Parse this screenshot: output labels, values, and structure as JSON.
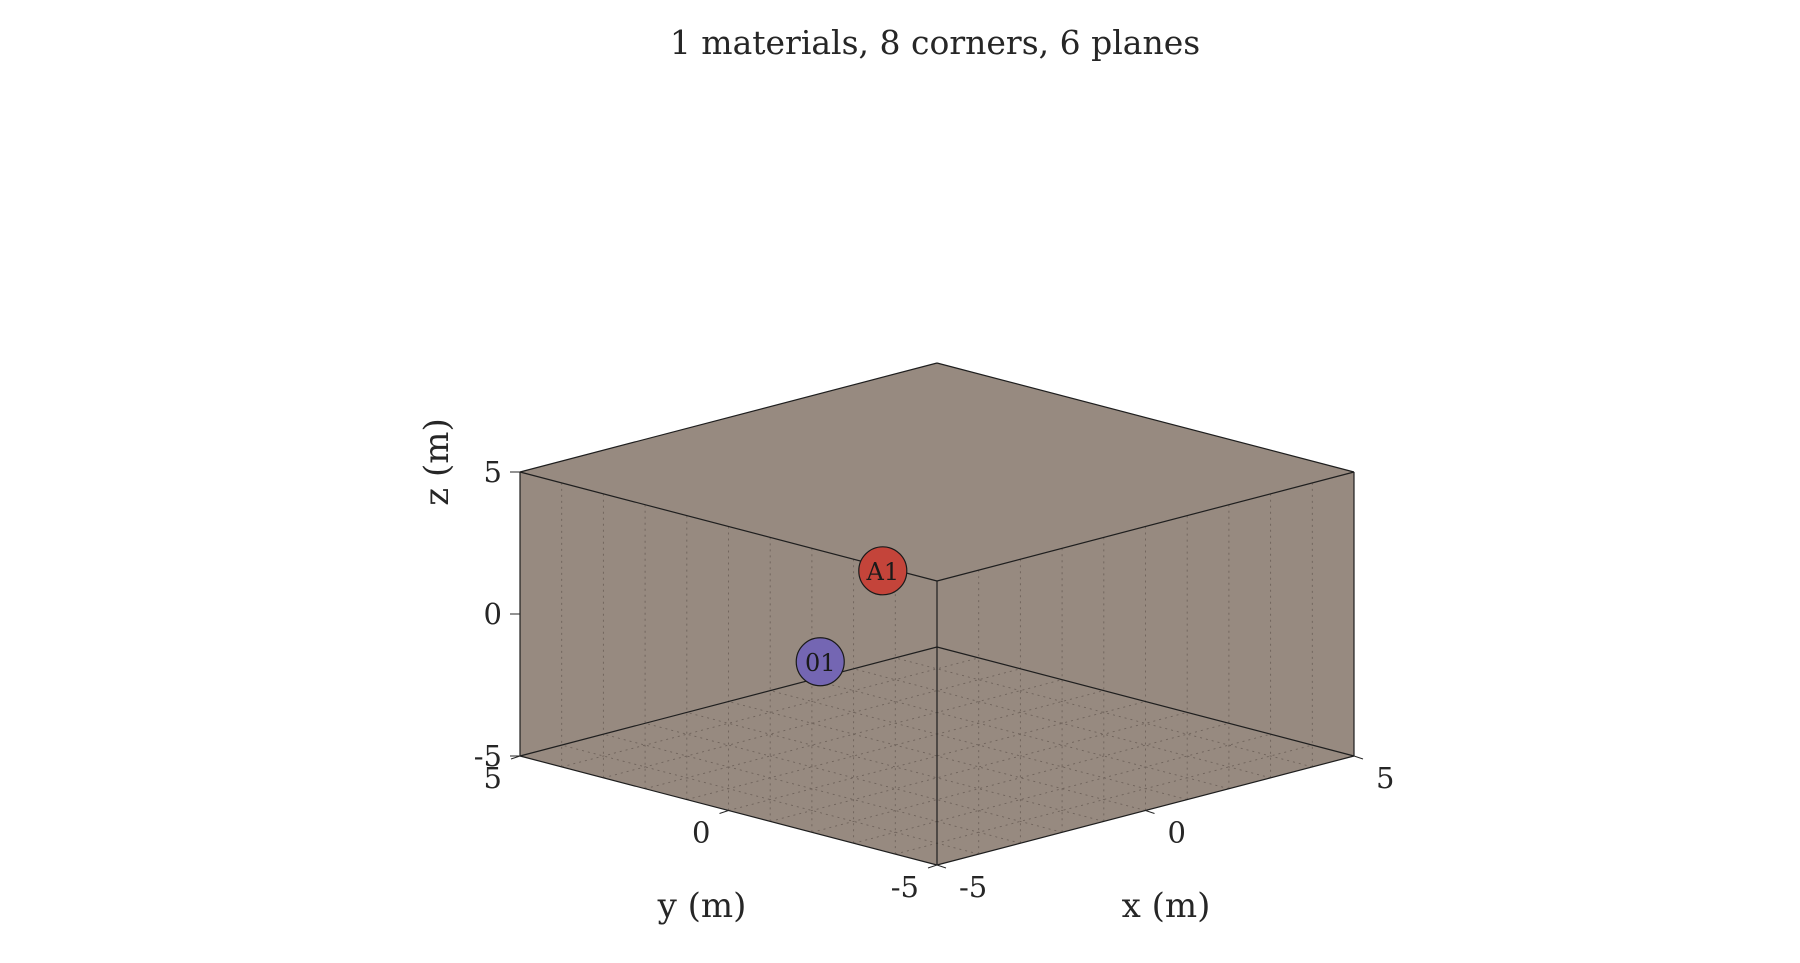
{
  "chart_data": {
    "type": "scatter",
    "title": "1 materials, 8 corners, 6 planes",
    "xlabel": "x (m)",
    "ylabel": "y (m)",
    "zlabel": "z (m)",
    "xlim": [
      -5,
      5
    ],
    "ylim": [
      -5,
      5
    ],
    "zlim": [
      -5,
      5
    ],
    "xticks": [
      "-5",
      "0",
      "5"
    ],
    "yticks": [
      "-5",
      "0",
      "5"
    ],
    "zticks": [
      "-5",
      "0",
      "5"
    ],
    "grid": true,
    "room_color": "#978a80",
    "points": [
      {
        "label": "01",
        "x": -3.2,
        "y": -0.4,
        "z": -0.3,
        "color": "#7466b3"
      },
      {
        "label": "A1",
        "x": 1.2,
        "y": 2.5,
        "z": 0.1,
        "color": "#c4443a"
      }
    ]
  }
}
